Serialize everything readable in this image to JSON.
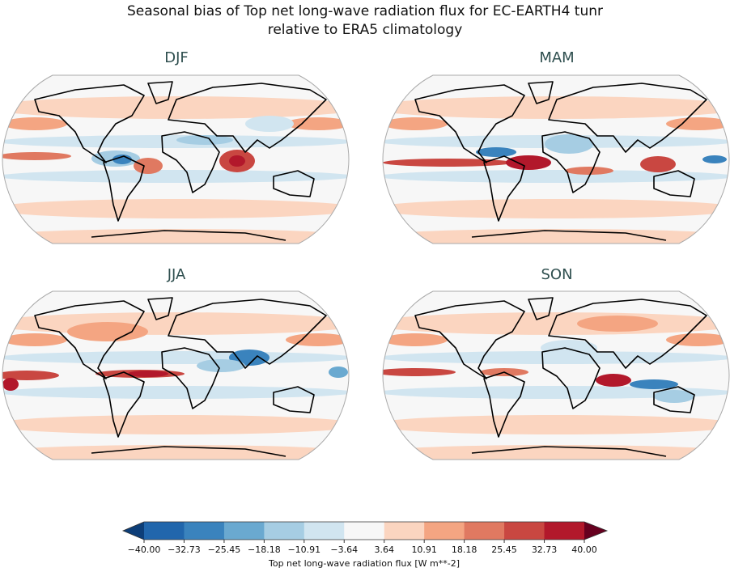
{
  "title": [
    "Seasonal bias of Top net long-wave radiation flux for EC-EARTH4 tunr",
    "relative to ERA5 climatology"
  ],
  "panels": [
    {
      "title": "DJF"
    },
    {
      "title": "MAM"
    },
    {
      "title": "JJA"
    },
    {
      "title": "SON"
    }
  ],
  "colorbar": {
    "label": "Top net long-wave radiation flux [W m**-2]",
    "ticks": [
      {
        "value": -40,
        "label": "−40.00"
      },
      {
        "value": -32.73,
        "label": "−32.73"
      },
      {
        "value": -25.45,
        "label": "−25.45"
      },
      {
        "value": -18.18,
        "label": "−18.18"
      },
      {
        "value": -10.91,
        "label": "−10.91"
      },
      {
        "value": -3.64,
        "label": "−3.64"
      },
      {
        "value": 3.64,
        "label": "3.64"
      },
      {
        "value": 10.91,
        "label": "10.91"
      },
      {
        "value": 18.18,
        "label": "18.18"
      },
      {
        "value": 25.45,
        "label": "25.45"
      },
      {
        "value": 32.73,
        "label": "32.73"
      },
      {
        "value": 40,
        "label": "40.00"
      }
    ],
    "colors": [
      "#2166ac",
      "#3a83bd",
      "#6aa9d0",
      "#a6cde3",
      "#d1e5f0",
      "#f7f7f7",
      "#fbd5c0",
      "#f4a582",
      "#e07961",
      "#c94741",
      "#b2182b"
    ],
    "extend_colors": [
      "#0d3e78",
      "#67001f"
    ]
  }
}
